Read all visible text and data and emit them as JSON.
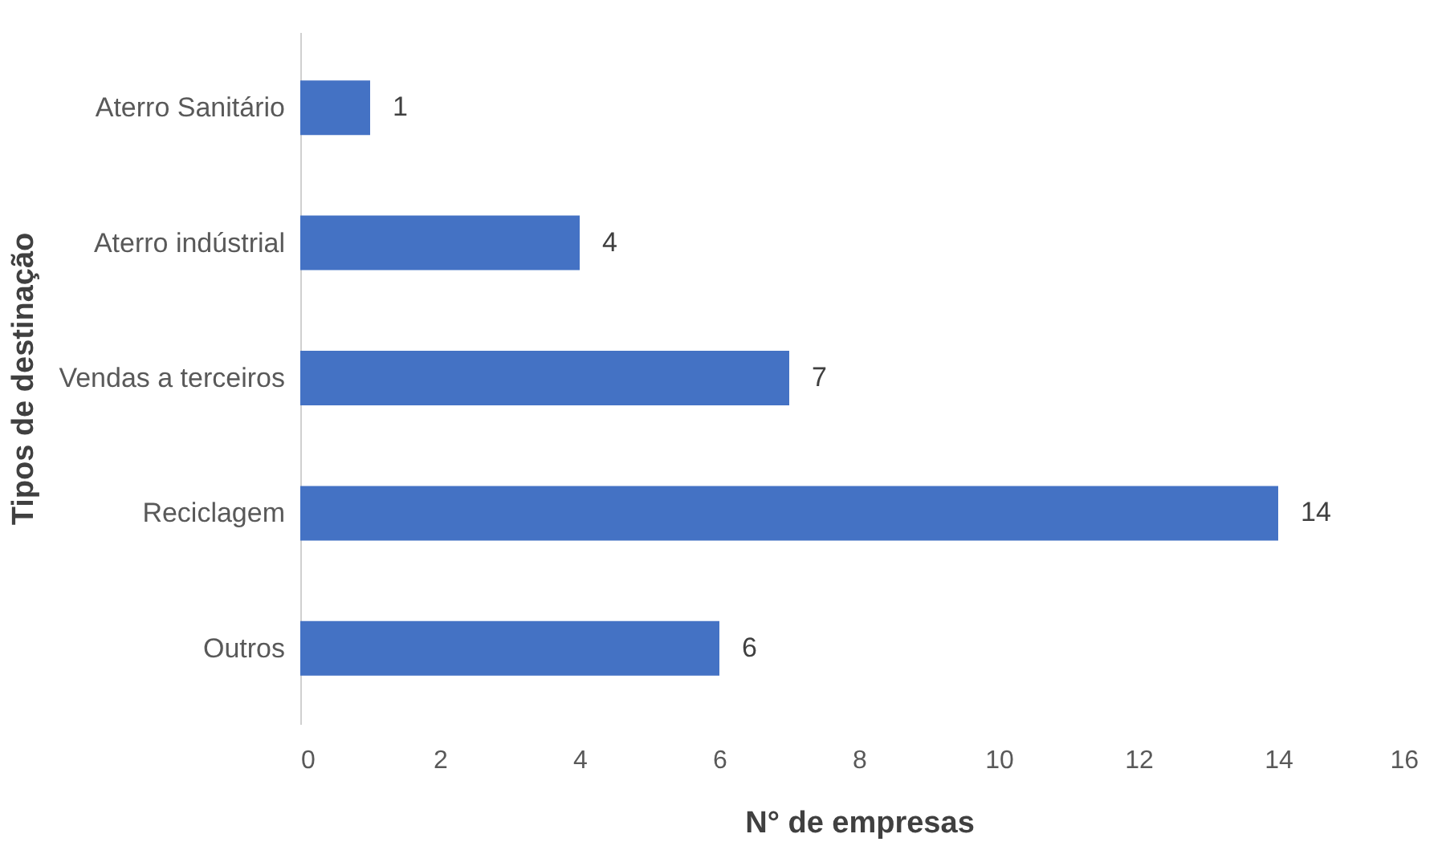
{
  "chart_data": {
    "type": "bar",
    "orientation": "horizontal",
    "xlabel": "N° de empresas",
    "ylabel": "Tipos de destinação",
    "categories": [
      "Aterro Sanitário",
      "Aterro indústrial",
      "Vendas a terceiros",
      "Reciclagem",
      "Outros"
    ],
    "values": [
      1,
      4,
      7,
      14,
      6
    ],
    "color": "#4472c4",
    "xlim": [
      0,
      16
    ],
    "xticks": [
      0,
      2,
      4,
      6,
      8,
      10,
      12,
      14,
      16
    ],
    "grid": false,
    "data_labels": true
  }
}
